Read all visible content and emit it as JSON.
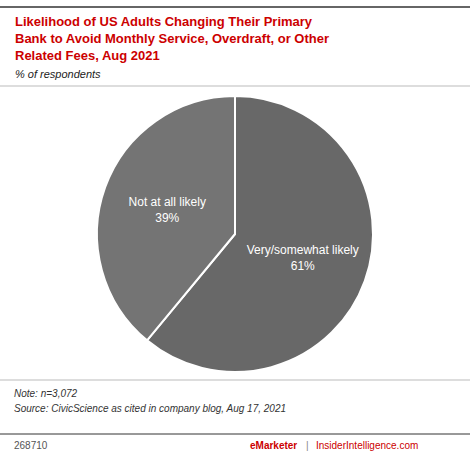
{
  "chart_data": {
    "type": "pie",
    "title": "Likelihood of US Adults Changing Their Primary\nBank to Avoid Monthly Service, Overdraft, or Other\nRelated Fees, Aug 2021",
    "subtitle": "% of respondents",
    "categories": [
      "Very/somewhat likely",
      "Not at all likely"
    ],
    "values": [
      61,
      39
    ],
    "value_labels": [
      "61%",
      "39%"
    ],
    "colors": [
      "#686868",
      "#747474"
    ],
    "data_labels": true,
    "annotations": [
      "Note: n=3,072\nSource: CivicScience as cited in company blog, Aug 17, 2021",
      "268710",
      "eMarketer",
      "|",
      "InsiderIntelligence.com"
    ]
  }
}
